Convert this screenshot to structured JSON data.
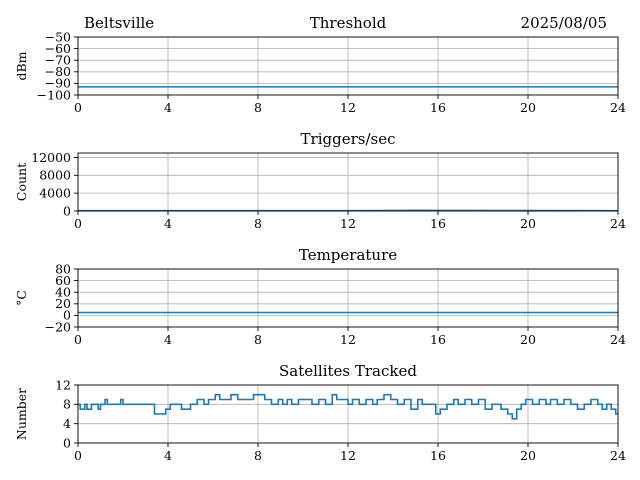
{
  "header": {
    "station": "Beltsville",
    "date": "2025/08/05"
  },
  "chart_data": [
    {
      "type": "line",
      "title": "Threshold",
      "xlabel": "",
      "ylabel": "dBm",
      "xlim": [
        0,
        24
      ],
      "ylim": [
        -100,
        -50
      ],
      "xticks": [
        "0",
        "4",
        "8",
        "12",
        "16",
        "20",
        "24"
      ],
      "yticks": [
        "−50",
        "−60",
        "−70",
        "−80",
        "−90",
        "−100"
      ],
      "ytick_values": [
        -50,
        -60,
        -70,
        -80,
        -90,
        -100
      ],
      "grid": true,
      "series": [
        {
          "x": [
            0,
            24
          ],
          "y": [
            -93,
            -93
          ]
        }
      ]
    },
    {
      "type": "line",
      "title": "Triggers/sec",
      "xlabel": "",
      "ylabel": "Count",
      "xlim": [
        0,
        24
      ],
      "ylim": [
        0,
        13000
      ],
      "xticks": [
        "0",
        "4",
        "8",
        "12",
        "16",
        "20",
        "24"
      ],
      "yticks": [
        "12000",
        "8000",
        "4000",
        "0"
      ],
      "ytick_values": [
        12000,
        8000,
        4000,
        0
      ],
      "grid": true,
      "series": [
        {
          "x": [
            0,
            4,
            8,
            12,
            15,
            16,
            20,
            24
          ],
          "y": [
            60,
            70,
            80,
            70,
            150,
            120,
            90,
            80
          ]
        }
      ]
    },
    {
      "type": "line",
      "title": "Temperature",
      "xlabel": "",
      "ylabel": "°C",
      "xlim": [
        0,
        24
      ],
      "ylim": [
        -20,
        80
      ],
      "xticks": [
        "0",
        "4",
        "8",
        "12",
        "16",
        "20",
        "24"
      ],
      "yticks": [
        "80",
        "60",
        "40",
        "20",
        "0",
        "−20"
      ],
      "ytick_values": [
        80,
        60,
        40,
        20,
        0,
        -20
      ],
      "grid": true,
      "series": [
        {
          "x": [
            0,
            24
          ],
          "y": [
            5,
            5
          ]
        }
      ]
    },
    {
      "type": "line",
      "step": true,
      "title": "Satellites Tracked",
      "xlabel": "",
      "ylabel": "Number",
      "xlim": [
        0,
        24
      ],
      "ylim": [
        0,
        12
      ],
      "xticks": [
        "0",
        "4",
        "8",
        "12",
        "16",
        "20",
        "24"
      ],
      "yticks": [
        "12",
        "8",
        "4",
        "0"
      ],
      "ytick_values": [
        12,
        8,
        4,
        0
      ],
      "grid": true,
      "series": [
        {
          "x": [
            0,
            0.1,
            0.3,
            0.4,
            0.6,
            0.7,
            0.9,
            1.0,
            1.2,
            1.3,
            1.5,
            1.8,
            1.9,
            2.0,
            3.4,
            3.9,
            4.1,
            4.4,
            4.6,
            5.0,
            5.3,
            5.6,
            5.8,
            6.1,
            6.3,
            6.5,
            6.8,
            7.1,
            7.4,
            7.8,
            8.2,
            8.3,
            8.6,
            8.9,
            9.1,
            9.3,
            9.5,
            9.8,
            10.1,
            10.4,
            10.7,
            11.0,
            11.3,
            11.5,
            11.7,
            12.0,
            12.2,
            12.5,
            12.8,
            13.1,
            13.3,
            13.6,
            13.9,
            14.2,
            14.5,
            14.8,
            15.1,
            15.3,
            15.6,
            15.9,
            16.1,
            16.4,
            16.7,
            16.9,
            17.2,
            17.5,
            17.8,
            18.1,
            18.4,
            18.8,
            19.1,
            19.3,
            19.5,
            19.7,
            19.9,
            20.2,
            20.5,
            20.8,
            21.0,
            21.3,
            21.6,
            21.9,
            22.2,
            22.5,
            22.8,
            23.1,
            23.3,
            23.5,
            23.7,
            23.9
          ],
          "y": [
            8,
            7,
            8,
            7,
            8,
            8,
            7,
            8,
            9,
            8,
            8,
            8,
            9,
            8,
            6,
            7,
            8,
            8,
            7,
            8,
            9,
            8,
            9,
            10,
            9,
            9,
            10,
            9,
            9,
            10,
            10,
            9,
            8,
            9,
            8,
            9,
            8,
            9,
            9,
            8,
            9,
            8,
            10,
            9,
            9,
            8,
            9,
            8,
            9,
            8,
            9,
            10,
            9,
            8,
            9,
            7,
            9,
            8,
            8,
            6,
            7,
            8,
            9,
            8,
            9,
            8,
            9,
            7,
            8,
            7,
            6,
            5,
            7,
            8,
            9,
            8,
            9,
            8,
            9,
            8,
            9,
            8,
            7,
            8,
            9,
            8,
            7,
            8,
            7,
            6
          ]
        }
      ]
    }
  ]
}
